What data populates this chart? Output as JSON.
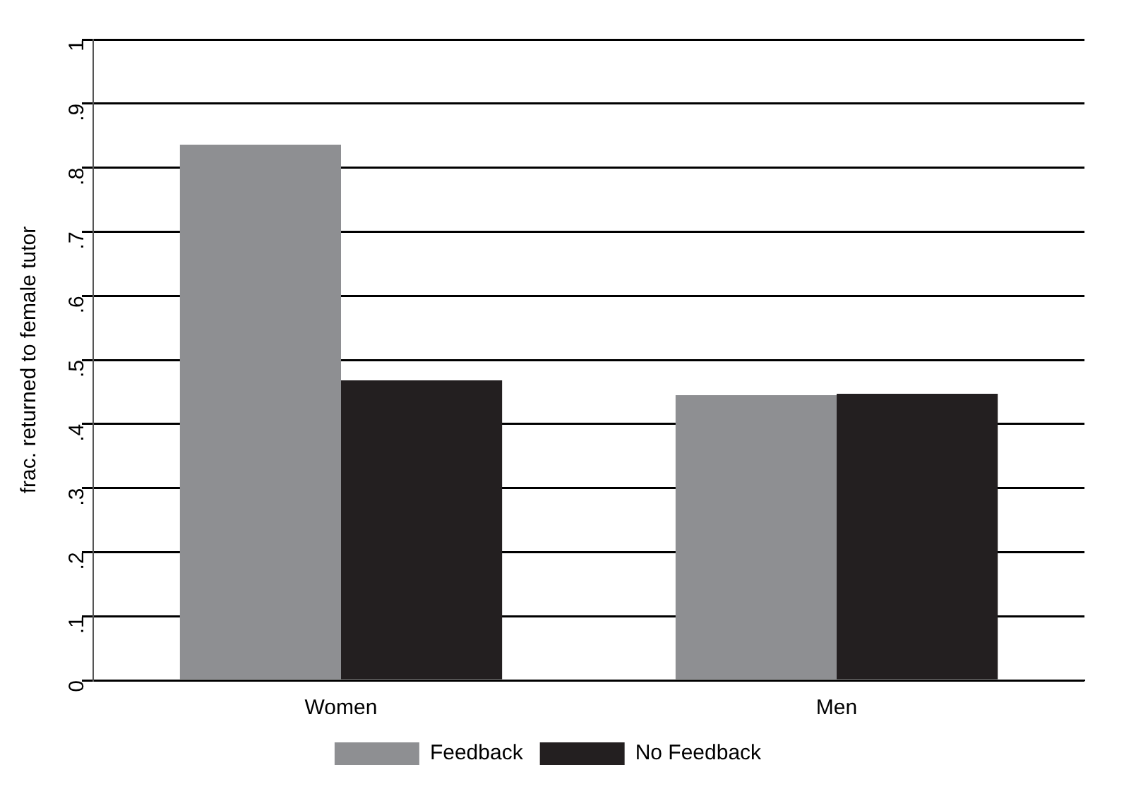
{
  "chart_data": {
    "type": "bar",
    "ylabel": "frac. returned to female tutor",
    "categories": [
      "Women",
      "Men"
    ],
    "series": [
      {
        "name": "Feedback",
        "color": "#8e8f92",
        "values": [
          0.836,
          0.445
        ]
      },
      {
        "name": "No Feedback",
        "color": "#231f20",
        "values": [
          0.468,
          0.447
        ]
      }
    ],
    "ylim": [
      0,
      1
    ],
    "yticks": [
      0,
      {
        "value": 0.1,
        "label": ".1"
      },
      {
        "value": 0.2,
        "label": ".2"
      },
      {
        "value": 0.3,
        "label": ".3"
      },
      {
        "value": 0.4,
        "label": ".4"
      },
      {
        "value": 0.5,
        "label": ".5"
      },
      {
        "value": 0.6,
        "label": ".6"
      },
      {
        "value": 0.7,
        "label": ".7"
      },
      {
        "value": 0.8,
        "label": ".8"
      },
      {
        "value": 0.9,
        "label": ".9"
      },
      1
    ],
    "grid": "y",
    "legend": "bottom"
  }
}
